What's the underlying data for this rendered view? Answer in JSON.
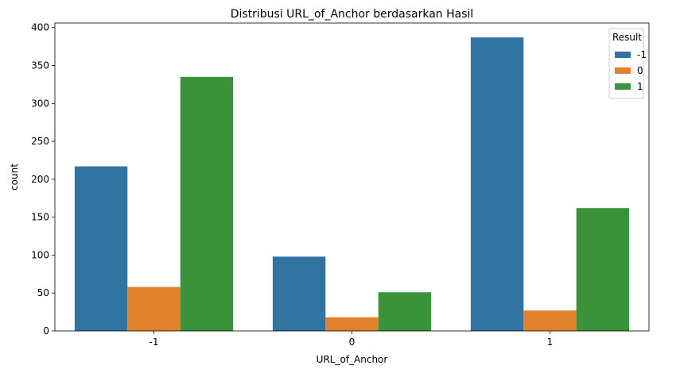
{
  "chart_data": {
    "type": "bar",
    "title": "Distribusi URL_of_Anchor berdasarkan Hasil",
    "xlabel": "URL_of_Anchor",
    "ylabel": "count",
    "categories": [
      "-1",
      "0",
      "1"
    ],
    "series": [
      {
        "name": "-1",
        "color": "#3274a1",
        "values": [
          217,
          98,
          387
        ]
      },
      {
        "name": "0",
        "color": "#e1812c",
        "values": [
          58,
          18,
          27
        ]
      },
      {
        "name": "1",
        "color": "#3a923a",
        "values": [
          335,
          51,
          162
        ]
      }
    ],
    "ylim": [
      0,
      406
    ],
    "yticks": [
      0,
      50,
      100,
      150,
      200,
      250,
      300,
      350,
      400
    ],
    "legend": {
      "title": "Result",
      "placement": "top-right"
    },
    "grid": false
  }
}
